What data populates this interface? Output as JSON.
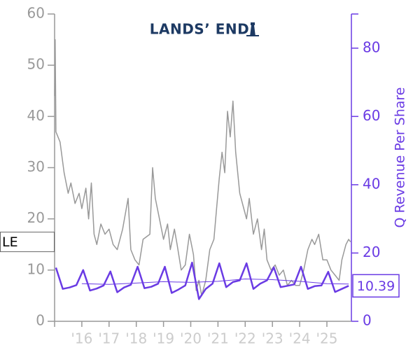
{
  "chart_data": {
    "type": "line",
    "title": "LANDS’ END",
    "ticker": "LE",
    "y2_label": "Q Revenue Per Share",
    "xlim": [
      2015.0,
      2025.9
    ],
    "xticks": [
      {
        "value": 2016,
        "label": "'16"
      },
      {
        "value": 2017,
        "label": "'17"
      },
      {
        "value": 2018,
        "label": "'18"
      },
      {
        "value": 2019,
        "label": "'19"
      },
      {
        "value": 2020,
        "label": "'20"
      },
      {
        "value": 2021,
        "label": "'21"
      },
      {
        "value": 2022,
        "label": "'22"
      },
      {
        "value": 2023,
        "label": "'23"
      },
      {
        "value": 2024,
        "label": "'24"
      },
      {
        "value": 2025,
        "label": "'25"
      }
    ],
    "ylim": [
      0,
      60
    ],
    "yticks": [
      0,
      10,
      20,
      30,
      40,
      50,
      60
    ],
    "y2lim": [
      0,
      90
    ],
    "y2ticks": [
      0,
      20,
      40,
      60,
      80
    ],
    "series": [
      {
        "axis": "y",
        "color": "#999999",
        "x": [
          2015.0,
          2015.02,
          2015.05,
          2015.2,
          2015.35,
          2015.5,
          2015.6,
          2015.75,
          2015.9,
          2016.0,
          2016.15,
          2016.25,
          2016.35,
          2016.45,
          2016.55,
          2016.7,
          2016.85,
          2017.0,
          2017.15,
          2017.3,
          2017.5,
          2017.7,
          2017.8,
          2017.95,
          2018.1,
          2018.25,
          2018.5,
          2018.6,
          2018.7,
          2018.85,
          2019.0,
          2019.15,
          2019.25,
          2019.4,
          2019.5,
          2019.65,
          2019.8,
          2019.95,
          2020.1,
          2020.2,
          2020.3,
          2020.4,
          2020.55,
          2020.7,
          2020.85,
          2020.95,
          2021.05,
          2021.15,
          2021.25,
          2021.35,
          2021.45,
          2021.55,
          2021.65,
          2021.8,
          2021.95,
          2022.05,
          2022.15,
          2022.3,
          2022.45,
          2022.6,
          2022.7,
          2022.8,
          2022.95,
          2023.1,
          2023.25,
          2023.4,
          2023.55,
          2023.7,
          2023.85,
          2024.0,
          2024.15,
          2024.3,
          2024.45,
          2024.55,
          2024.7,
          2024.85,
          2025.0,
          2025.15,
          2025.3,
          2025.45,
          2025.55,
          2025.7,
          2025.8,
          2025.87
        ],
        "values": [
          44,
          55,
          37,
          35,
          29,
          25,
          27,
          23,
          25,
          22,
          26,
          20,
          27,
          17,
          15,
          19,
          17,
          18,
          15,
          14,
          18,
          24,
          14,
          12,
          11,
          16,
          17,
          30,
          24,
          20,
          16,
          19,
          14,
          18,
          15,
          10,
          11,
          17,
          13,
          6,
          8,
          5,
          8,
          14,
          16,
          22,
          28,
          33,
          29,
          41,
          36,
          43,
          33,
          25,
          22,
          20,
          24,
          17,
          20,
          14,
          18,
          12,
          10,
          11,
          9,
          10,
          7,
          8,
          7,
          7,
          10,
          14,
          16,
          15,
          17,
          12,
          12,
          10,
          9,
          8,
          12,
          15,
          16,
          15.5
        ]
      },
      {
        "name": "Q Revenue Per Share",
        "axis": "y2",
        "color": "#6a3be4",
        "x": [
          2015.05,
          2015.3,
          2015.55,
          2015.8,
          2016.05,
          2016.3,
          2016.55,
          2016.8,
          2017.05,
          2017.3,
          2017.55,
          2017.8,
          2018.05,
          2018.3,
          2018.55,
          2018.8,
          2019.05,
          2019.3,
          2019.55,
          2019.8,
          2020.05,
          2020.3,
          2020.55,
          2020.8,
          2021.05,
          2021.3,
          2021.55,
          2021.8,
          2022.05,
          2022.3,
          2022.55,
          2022.8,
          2023.05,
          2023.3,
          2023.55,
          2023.8,
          2024.05,
          2024.3,
          2024.55,
          2024.8,
          2025.05,
          2025.3,
          2025.55,
          2025.8
        ],
        "values": [
          15.7,
          9.5,
          9.9,
          10.6,
          15,
          9,
          9.6,
          10.5,
          14.6,
          8.5,
          9.9,
          10.7,
          16,
          9.7,
          10.1,
          11,
          16,
          8.3,
          9.3,
          10.5,
          17.2,
          6.5,
          9.5,
          11,
          17,
          10,
          11.5,
          12,
          17,
          9.5,
          11,
          12,
          15.8,
          10,
          10.4,
          10.8,
          16,
          9.5,
          10.3,
          10.5,
          14.5,
          8.6,
          9.5,
          10.39
        ]
      },
      {
        "axis": "y2",
        "color": "#6a3be4",
        "x": [
          2016.0,
          2017.0,
          2018.0,
          2019.0,
          2020.0,
          2021.0,
          2022.0,
          2023.0,
          2024.0,
          2025.0,
          2025.8
        ],
        "values": [
          11,
          10.8,
          11.2,
          11.6,
          11.4,
          11.7,
          12.4,
          12.2,
          11.7,
          11,
          10.9
        ]
      }
    ]
  }
}
